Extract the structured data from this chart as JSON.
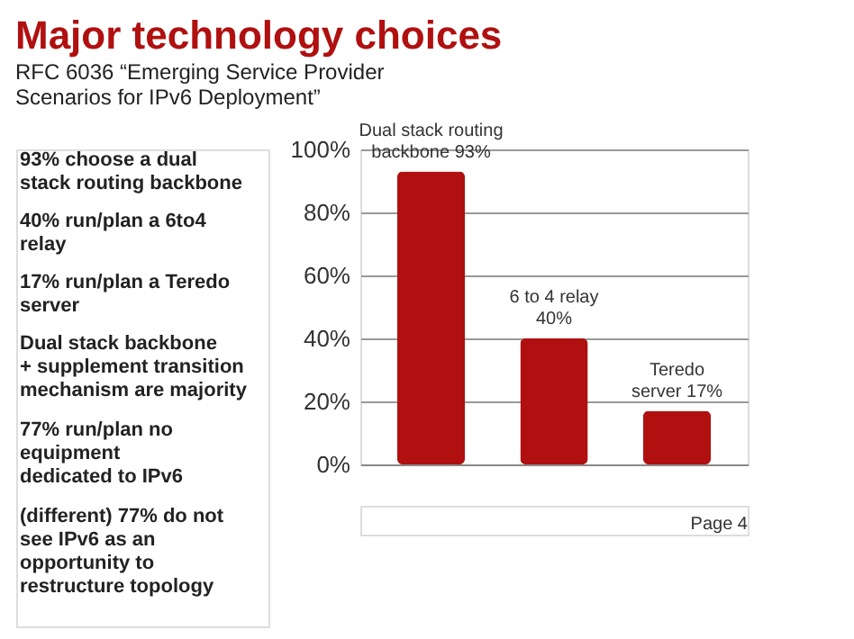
{
  "chart_data": {
    "type": "bar",
    "title": "Major technology choices",
    "subtitle": "RFC 6036 “Emerging Service Provider\nScenarios for IPv6 Deployment”",
    "categories": [
      null,
      null,
      null
    ],
    "values": [
      93,
      40,
      17
    ],
    "color": "#b01010",
    "value_labels": [
      "Dual stack routing\nbackbone 93%",
      "6 to 4 relay\n40%",
      "Teredo\nserver 17%"
    ],
    "ylim": [
      0,
      100
    ],
    "yticks": [
      {
        "value": 0,
        "label": "0%"
      },
      {
        "value": 20,
        "label": "20%"
      },
      {
        "value": 40,
        "label": "40%"
      },
      {
        "value": 60,
        "label": "60%"
      },
      {
        "value": 80,
        "label": "80%"
      },
      {
        "value": 100,
        "label": "100%"
      }
    ],
    "grid": "y",
    "tick_labels": "y",
    "annotations": [
      "93% choose a dual\nstack routing backbone",
      "40% run/plan a 6to4\nrelay",
      "17% run/plan a Teredo\nserver",
      "Dual stack backbone\n+ supplement transition\nmechanism are majority",
      "77% run/plan no\nequipment\ndedicated to IPv6",
      "(different) 77% do not\nsee IPv6 as an\nopportunity to\nrestructure topology",
      "Page 4"
    ]
  }
}
